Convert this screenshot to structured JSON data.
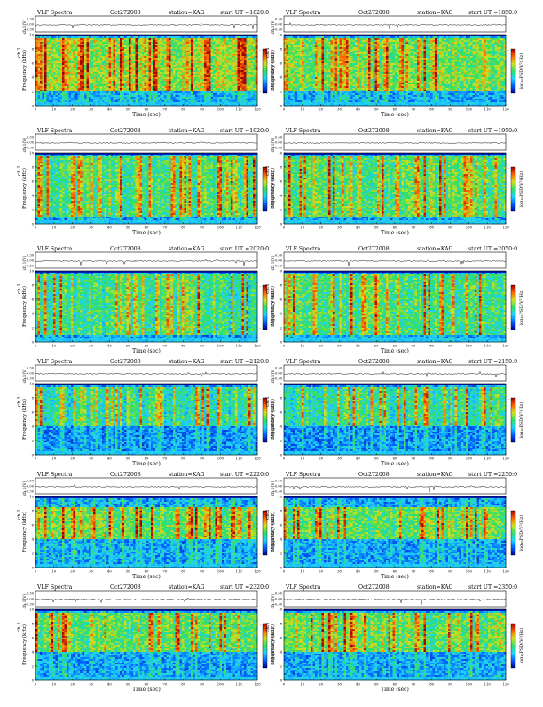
{
  "page": {
    "header_left": "VLF Spectra",
    "date": "Oct272008",
    "station": "station=KAG",
    "start_prefix": "start UT =",
    "amp_axis_label": "ch.1(V)",
    "amp_ticks": [
      "0.30",
      "0.00",
      "-0.30"
    ],
    "freq_axis_label": "Frequency (kHz)",
    "freq_axis_prefix": "ch.1",
    "freq_ticks": [
      "0",
      "2",
      "4",
      "6",
      "8",
      "10"
    ],
    "time_axis_label": "Time (sec)",
    "time_ticks": [
      "0",
      "10",
      "20",
      "30",
      "40",
      "50",
      "60",
      "70",
      "80",
      "90",
      "100",
      "110",
      "120"
    ],
    "colorbar_label": "log₁₀PSD(V²/Hz)",
    "colorbar_ticks": [
      "-",
      "-"
    ]
  },
  "colors": {
    "colormap": [
      "#00008f",
      "#0060ff",
      "#20d0ff",
      "#30e060",
      "#d0e020",
      "#ff6000",
      "#a00000"
    ],
    "background": "#ffffff",
    "axis": "#000000"
  },
  "chart_data": [
    {
      "type": "heatmap",
      "start_ut": "1820:0",
      "xlim": [
        0,
        120
      ],
      "ylim": [
        0,
        10
      ],
      "amp_ylim": [
        -0.3,
        0.3
      ],
      "intensity": 0.78,
      "band_low_khz": 2,
      "band_high_khz": 9.5
    },
    {
      "type": "heatmap",
      "start_ut": "1850:0",
      "xlim": [
        0,
        120
      ],
      "ylim": [
        0,
        10
      ],
      "amp_ylim": [
        -0.3,
        0.3
      ],
      "intensity": 0.68,
      "band_low_khz": 2,
      "band_high_khz": 9.5
    },
    {
      "type": "heatmap",
      "start_ut": "1920:0",
      "xlim": [
        0,
        120
      ],
      "ylim": [
        0,
        10
      ],
      "amp_ylim": [
        -0.3,
        0.3
      ],
      "intensity": 0.5,
      "band_low_khz": 1,
      "band_high_khz": 9.5
    },
    {
      "type": "heatmap",
      "start_ut": "1950:0",
      "xlim": [
        0,
        120
      ],
      "ylim": [
        0,
        10
      ],
      "amp_ylim": [
        -0.3,
        0.3
      ],
      "intensity": 0.55,
      "band_low_khz": 1,
      "band_high_khz": 9.5
    },
    {
      "type": "heatmap",
      "start_ut": "2020:0",
      "xlim": [
        0,
        120
      ],
      "ylim": [
        0,
        10
      ],
      "amp_ylim": [
        -0.3,
        0.3
      ],
      "intensity": 0.42,
      "band_low_khz": 1,
      "band_high_khz": 9.5
    },
    {
      "type": "heatmap",
      "start_ut": "2050:0",
      "xlim": [
        0,
        120
      ],
      "ylim": [
        0,
        10
      ],
      "amp_ylim": [
        -0.3,
        0.3
      ],
      "intensity": 0.5,
      "band_low_khz": 1,
      "band_high_khz": 9.5
    },
    {
      "type": "heatmap",
      "start_ut": "2120:0",
      "xlim": [
        0,
        120
      ],
      "ylim": [
        0,
        10
      ],
      "amp_ylim": [
        -0.3,
        0.3
      ],
      "intensity": 0.35,
      "band_low_khz": 4,
      "band_high_khz": 9.5
    },
    {
      "type": "heatmap",
      "start_ut": "2150:0",
      "xlim": [
        0,
        120
      ],
      "ylim": [
        0,
        10
      ],
      "amp_ylim": [
        -0.3,
        0.3
      ],
      "intensity": 0.38,
      "band_low_khz": 4,
      "band_high_khz": 9.5
    },
    {
      "type": "heatmap",
      "start_ut": "2220:0",
      "xlim": [
        0,
        120
      ],
      "ylim": [
        0,
        10
      ],
      "amp_ylim": [
        -0.3,
        0.3
      ],
      "intensity": 0.62,
      "band_low_khz": 4,
      "band_high_khz": 8.5
    },
    {
      "type": "heatmap",
      "start_ut": "2250:0",
      "xlim": [
        0,
        120
      ],
      "ylim": [
        0,
        10
      ],
      "amp_ylim": [
        -0.3,
        0.3
      ],
      "intensity": 0.6,
      "band_low_khz": 4,
      "band_high_khz": 8.5
    },
    {
      "type": "heatmap",
      "start_ut": "2320:0",
      "xlim": [
        0,
        120
      ],
      "ylim": [
        0,
        10
      ],
      "amp_ylim": [
        -0.3,
        0.3
      ],
      "intensity": 0.6,
      "band_low_khz": 4,
      "band_high_khz": 9.5
    },
    {
      "type": "heatmap",
      "start_ut": "2350:0",
      "xlim": [
        0,
        120
      ],
      "ylim": [
        0,
        10
      ],
      "amp_ylim": [
        -0.3,
        0.3
      ],
      "intensity": 0.62,
      "band_low_khz": 4,
      "band_high_khz": 9.5
    }
  ]
}
